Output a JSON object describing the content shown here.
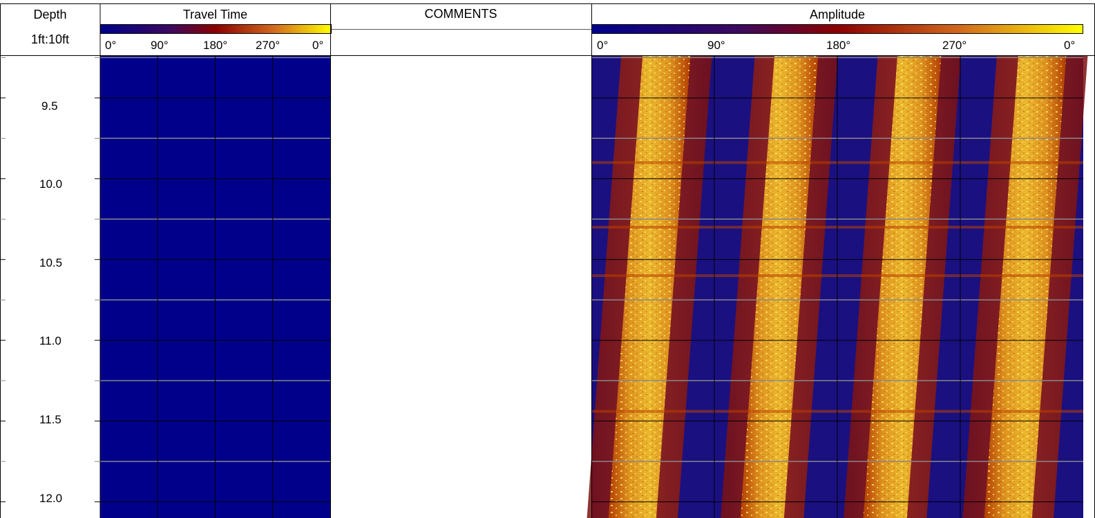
{
  "header": {
    "depth_title": "Depth",
    "depth_scale": "1ft:10ft",
    "travel_time_title": "Travel Time",
    "comments_title": "COMMENTS",
    "amplitude_title": "Amplitude"
  },
  "travel_time_ticks": [
    "0°",
    "90°",
    "180°",
    "270°",
    "0°"
  ],
  "amplitude_ticks": [
    "0°",
    "90°",
    "180°",
    "270°",
    "0°"
  ],
  "colors": {
    "scale_low": "#00008b",
    "scale_mid1": "#3b0a5e",
    "scale_mid2": "#8b0000",
    "scale_mid3": "#d2691e",
    "scale_high": "#ffff00",
    "travel_time_fill": "#00008b"
  },
  "chart_data": [
    {
      "type": "heatmap",
      "title": "Travel Time",
      "x_ticks": [
        "0°",
        "90°",
        "180°",
        "270°",
        "0°"
      ],
      "y_labels": [
        "9.5",
        "10.0",
        "10.5",
        "11.0",
        "11.5",
        "12.0"
      ],
      "ylim": [
        9.24,
        12.1
      ],
      "azimuth_range": [
        0,
        360
      ],
      "value": "uniform low (dark blue)"
    },
    {
      "type": "heatmap",
      "title": "Amplitude",
      "x_ticks": [
        "0°",
        "90°",
        "180°",
        "270°",
        "0°"
      ],
      "y_labels": [
        "9.5",
        "10.0",
        "10.5",
        "11.0",
        "11.5",
        "12.0"
      ],
      "ylim": [
        9.24,
        12.1
      ],
      "azimuth_range": [
        0,
        360
      ],
      "high_bands_deg": [
        {
          "name": "band-1",
          "center_top": 55,
          "center_bottom": 30,
          "width": 35
        },
        {
          "name": "band-2",
          "center_top": 150,
          "center_bottom": 125,
          "width": 32
        },
        {
          "name": "band-3",
          "center_top": 240,
          "center_bottom": 215,
          "width": 32
        },
        {
          "name": "band-4",
          "center_top": 330,
          "center_bottom": 305,
          "width": 35
        }
      ],
      "horizontal_features_depth": [
        9.9,
        10.3,
        10.6,
        11.44
      ]
    }
  ],
  "depth_axis": {
    "labels": [
      "9.5",
      "10.0",
      "10.5",
      "11.0",
      "11.5",
      "12.0"
    ]
  }
}
